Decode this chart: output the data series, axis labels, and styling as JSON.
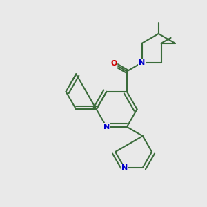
{
  "background_color": "#e9e9e9",
  "bond_color": "#3a6b3a",
  "N_color": "#0000cc",
  "O_color": "#cc0000",
  "line_width": 1.5,
  "figsize": [
    3.0,
    3.0
  ],
  "dpi": 100,
  "xlim": [
    0,
    10
  ],
  "ylim": [
    0,
    10
  ]
}
